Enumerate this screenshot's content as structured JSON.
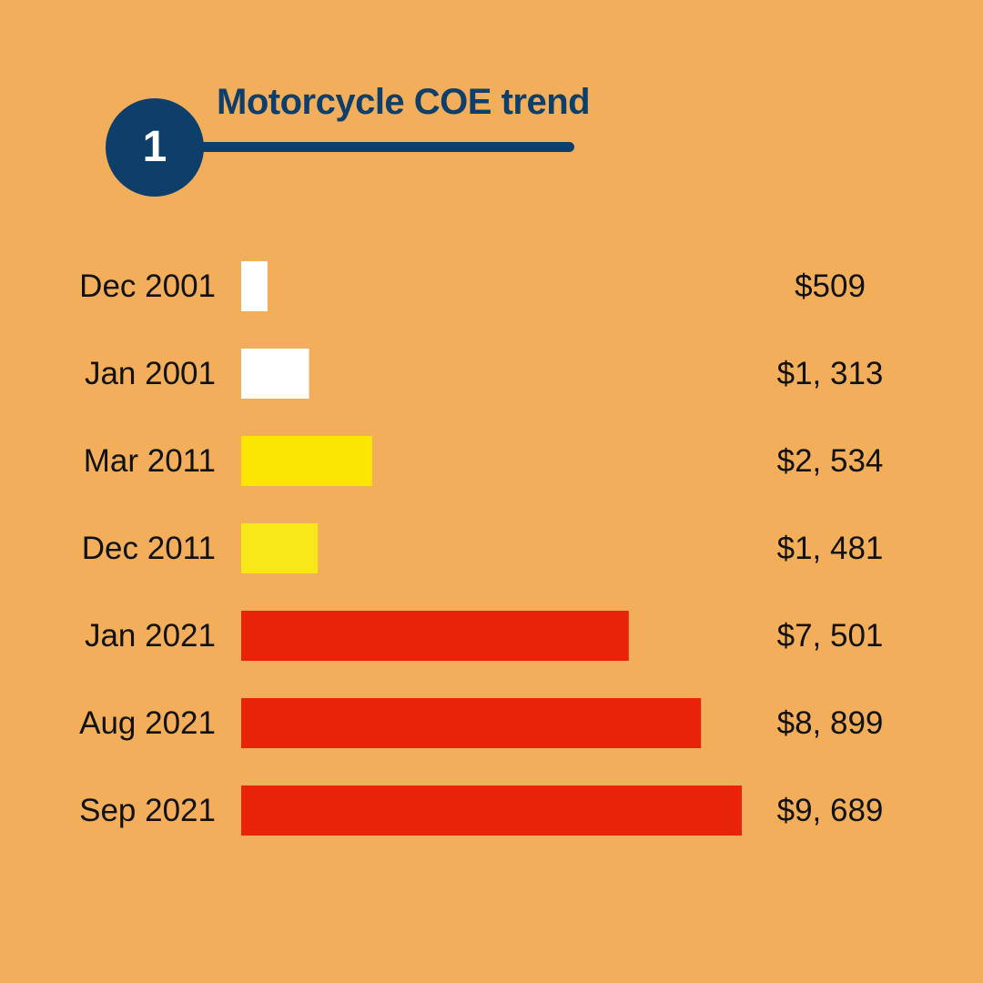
{
  "header": {
    "step_number": "1",
    "title": "Motorcycle COE trend"
  },
  "colors": {
    "background": "#F2AE5B",
    "navy": "#0E3F6B",
    "text": "#111111"
  },
  "chart_data": {
    "type": "bar",
    "orientation": "horizontal",
    "title": "Motorcycle COE trend",
    "xlabel": "",
    "ylabel": "",
    "categories": [
      "Dec 2001",
      "Jan 2001",
      "Mar 2011",
      "Dec 2011",
      "Jan 2021",
      "Aug 2021",
      "Sep 2021"
    ],
    "values": [
      509,
      1313,
      2534,
      1481,
      7501,
      8899,
      9689
    ],
    "value_labels": [
      "$509",
      "$1, 313",
      "$2, 534",
      "$1, 481",
      "$7, 501",
      "$8, 899",
      "$9, 689"
    ],
    "bar_colors": [
      "#FFFFFF",
      "#FFFFFF",
      "#FAE600",
      "#F9E819",
      "#E8230A",
      "#E8230A",
      "#E8230A"
    ],
    "grid": false,
    "legend": "none"
  }
}
